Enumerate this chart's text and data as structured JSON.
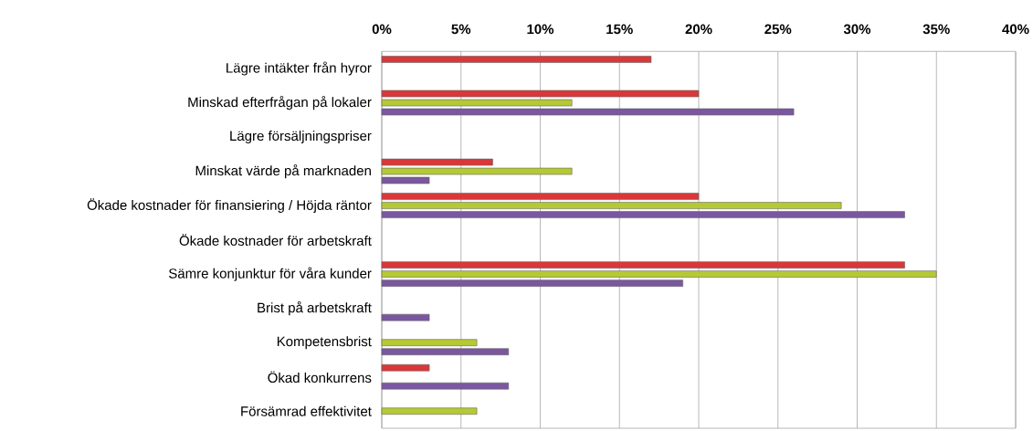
{
  "chart_data": {
    "type": "bar",
    "orientation": "horizontal",
    "categories": [
      "Lägre intäkter från hyror",
      "Minskad efterfrågan på lokaler",
      "Lägre försäljningspriser",
      "Minskat värde på marknaden",
      "Ökade kostnader för finansiering / Höjda räntor",
      "Ökade kostnader för arbetskraft",
      "Sämre konjunktur för våra kunder",
      "Brist på arbetskraft",
      "Kompetensbrist",
      "Ökad konkurrens",
      "Försämrad effektivitet"
    ],
    "series": [
      {
        "color": "#d9383a",
        "values": [
          17,
          20,
          null,
          7,
          20,
          null,
          33,
          null,
          null,
          3,
          null
        ]
      },
      {
        "color": "#b5c934",
        "values": [
          null,
          12,
          null,
          12,
          29,
          null,
          35,
          null,
          6,
          null,
          6
        ]
      },
      {
        "color": "#7b57a0",
        "values": [
          null,
          26,
          null,
          3,
          33,
          null,
          19,
          3,
          8,
          8,
          null
        ]
      }
    ],
    "xlim": [
      0,
      40
    ],
    "xticks": [
      {
        "value": 0,
        "label": "0%"
      },
      {
        "value": 5,
        "label": "5%"
      },
      {
        "value": 10,
        "label": "10%"
      },
      {
        "value": 15,
        "label": "15%"
      },
      {
        "value": 20,
        "label": "20%"
      },
      {
        "value": 25,
        "label": "25%"
      },
      {
        "value": 30,
        "label": "30%"
      },
      {
        "value": 35,
        "label": "35%"
      },
      {
        "value": 40,
        "label": "40%"
      }
    ],
    "grid": "x"
  }
}
